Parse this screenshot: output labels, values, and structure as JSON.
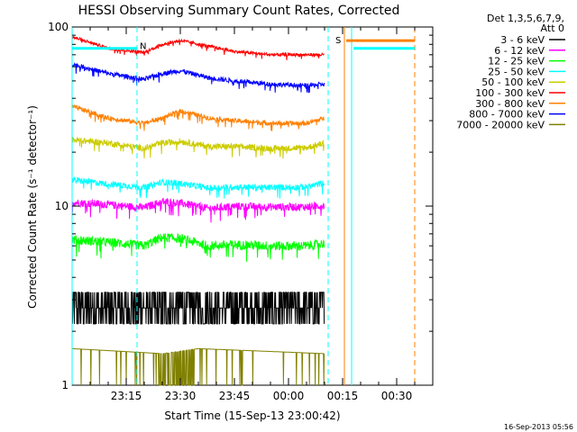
{
  "chart_data": {
    "type": "line",
    "title": "HESSI Observing Summary Count Rates, Corrected",
    "xlabel": "Start Time (15-Sep-13 23:00:42)",
    "ylabel": "Corrected Count Rate (s⁻¹ detector⁻¹)",
    "x_ticks": [
      "23:15",
      "23:30",
      "23:45",
      "00:00",
      "00:15",
      "00:30"
    ],
    "y_ticks": [
      "1",
      "10",
      "100"
    ],
    "y_scale": "log",
    "ylim": [
      1,
      100
    ],
    "xlim_minutes_after_23_00": [
      0,
      100
    ],
    "legend_header": [
      "Det 1,3,5,6,7,9,",
      "Att 0"
    ],
    "legend_position": "top-right outside plot",
    "series": [
      {
        "name": "3 - 6 keV",
        "color": "#000000",
        "x_min": [
          0,
          10,
          20,
          25,
          30,
          38,
          45,
          55,
          65,
          70
        ],
        "y": [
          2.9,
          2.8,
          2.7,
          3.1,
          2.9,
          2.6,
          2.8,
          2.7,
          2.7,
          2.8
        ]
      },
      {
        "name": "6 - 12 keV",
        "color": "#ff00ff",
        "x_min": [
          0,
          10,
          20,
          25,
          30,
          38,
          45,
          55,
          65,
          70
        ],
        "y": [
          10.5,
          10.2,
          9.8,
          10.6,
          10.4,
          9.7,
          10.0,
          9.9,
          9.9,
          10.1
        ]
      },
      {
        "name": "12 - 25 keV",
        "color": "#00ff00",
        "x_min": [
          0,
          10,
          20,
          25,
          30,
          38,
          45,
          55,
          65,
          70
        ],
        "y": [
          6.5,
          6.3,
          6.0,
          6.7,
          6.6,
          6.0,
          6.1,
          6.0,
          6.0,
          6.2
        ]
      },
      {
        "name": "25 - 50 keV",
        "color": "#00ffff",
        "x_min": [
          0,
          10,
          20,
          25,
          30,
          38,
          45,
          55,
          65,
          70
        ],
        "y": [
          14.0,
          13.3,
          12.7,
          13.6,
          13.4,
          12.6,
          12.8,
          12.7,
          12.8,
          13.5
        ]
      },
      {
        "name": "50 - 100 keV",
        "color": "#cccc00",
        "x_min": [
          0,
          10,
          20,
          25,
          30,
          38,
          45,
          55,
          65,
          70
        ],
        "y": [
          23.5,
          22.5,
          21.0,
          22.5,
          23.0,
          21.5,
          21.5,
          21.0,
          21.2,
          22.5
        ]
      },
      {
        "name": "100 - 300 keV",
        "color": "#ff0000",
        "x_min": [
          0,
          10,
          20,
          25,
          30,
          38,
          45,
          55,
          65,
          70
        ],
        "y": [
          88,
          76,
          72,
          80,
          84,
          78,
          73,
          70,
          70,
          70
        ]
      },
      {
        "name": "300 - 800 keV",
        "color": "#ff8000",
        "x_min": [
          0,
          10,
          20,
          25,
          30,
          38,
          45,
          55,
          65,
          70
        ],
        "y": [
          36,
          31,
          29,
          31,
          34,
          31,
          30,
          29,
          29,
          31
        ]
      },
      {
        "name": "800 - 7000 keV",
        "color": "#0000ff",
        "x_min": [
          0,
          10,
          20,
          25,
          30,
          38,
          45,
          55,
          65,
          70
        ],
        "y": [
          62,
          55,
          51,
          55,
          57,
          52,
          50,
          48,
          47,
          48
        ]
      },
      {
        "name": "7000 - 20000 keV",
        "color": "#808000",
        "x_min": [
          0,
          25,
          35,
          70
        ],
        "y": [
          1.6,
          1.5,
          1.6,
          1.5
        ]
      }
    ],
    "flag_lines": [
      {
        "label": "N",
        "color": "#00ffff",
        "x_min": [
          0,
          18
        ],
        "y": 76
      },
      {
        "label": "S",
        "color": "#ff8000",
        "x_min": [
          76,
          95
        ],
        "y": 84
      },
      {
        "label": "",
        "color": "#00ffff",
        "x_min": [
          78,
          95
        ],
        "y": 76
      }
    ],
    "vertical_markers": [
      {
        "x_min": 0,
        "style": "solid",
        "color": "#00ffff"
      },
      {
        "x_min": 18,
        "style": "dashed",
        "color": "#00ffff"
      },
      {
        "x_min": 71,
        "style": "dashed",
        "color": "#00ffff"
      },
      {
        "x_min": 75.5,
        "style": "solid",
        "color": "#ff8000"
      },
      {
        "x_min": 77.5,
        "style": "solid",
        "color": "#00ffff"
      },
      {
        "x_min": 95,
        "style": "dashed",
        "color": "#ff8000"
      }
    ],
    "timestamp": "16-Sep-2013 05:56"
  }
}
